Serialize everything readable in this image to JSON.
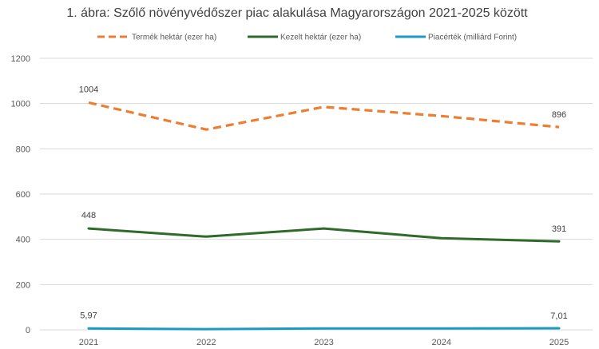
{
  "chart_data": {
    "type": "line",
    "title": "1. ábra: Szőlő növényvédőszer piac alakulása Magyarországon 2021-2025 között",
    "categories": [
      "2021",
      "2022",
      "2023",
      "2024",
      "2025"
    ],
    "ylim": [
      0,
      1200
    ],
    "yticks": [
      0,
      200,
      400,
      600,
      800,
      1000,
      1200
    ],
    "grid": true,
    "legend_position": "top",
    "series": [
      {
        "name": "Termék hektár (ezer ha)",
        "values": [
          1004,
          885,
          985,
          945,
          896
        ],
        "color": "#ED7D31",
        "dash": true,
        "labels": {
          "first": "1004",
          "last": "896"
        }
      },
      {
        "name": "Kezelt hektár (ezer ha)",
        "values": [
          448,
          412,
          448,
          405,
          391
        ],
        "color": "#2E6B2A",
        "dash": false,
        "labels": {
          "first": "448",
          "last": "391"
        }
      },
      {
        "name": "Piacérték (milliárd Forint)",
        "values": [
          5.97,
          3.2,
          6.5,
          6.2,
          7.01
        ],
        "color": "#1A9BC6",
        "dash": false,
        "labels": {
          "first": "5,97",
          "last": "7,01"
        }
      }
    ]
  }
}
